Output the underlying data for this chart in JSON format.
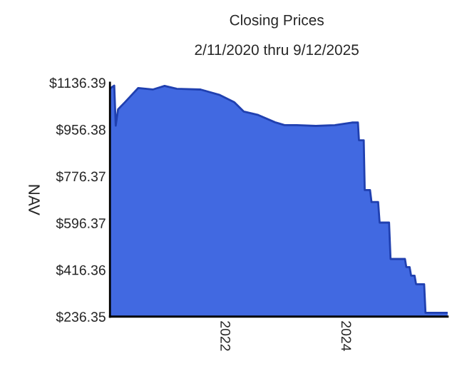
{
  "chart_data": {
    "type": "area",
    "title": "Closing Prices",
    "subtitle": "2/11/2020 thru 9/12/2025",
    "ylabel": "NAV",
    "x": [
      "2020-02-11",
      "2020-03-08",
      "2020-03-17",
      "2020-03-31",
      "2020-05-11",
      "2020-07-31",
      "2020-10-26",
      "2021-01-06",
      "2021-03-20",
      "2021-08-12",
      "2021-12-06",
      "2022-03-03",
      "2022-04-30",
      "2022-07-26",
      "2022-11-04",
      "2023-01-01",
      "2023-03-15",
      "2023-07-09",
      "2023-11-01",
      "2024-02-11",
      "2024-03-19",
      "2024-03-25",
      "2024-04-23",
      "2024-04-29",
      "2024-05-31",
      "2024-06-09",
      "2024-07-19",
      "2024-07-28",
      "2024-09-23",
      "2024-10-02",
      "2024-12-28",
      "2025-01-05",
      "2025-01-25",
      "2025-02-03",
      "2025-02-24",
      "2025-03-05",
      "2025-04-23",
      "2025-05-01",
      "2025-09-12"
    ],
    "series": [
      {
        "color": "#4169e1",
        "values": [
          1114,
          1125,
          971,
          1034,
          1061,
          1116,
          1110,
          1124,
          1113,
          1110,
          1089,
          1061,
          1025,
          1012,
          984,
          973,
          973,
          970,
          973,
          983,
          983,
          915,
          915,
          723,
          723,
          677,
          677,
          598,
          598,
          458,
          458,
          427,
          427,
          394,
          394,
          361,
          361,
          251,
          251
        ]
      }
    ],
    "xlim": [
      "2020-02-11",
      "2025-09-12"
    ],
    "xticks": [
      "2022",
      "2024"
    ],
    "ylim": [
      236.35,
      1136.39
    ],
    "yticks": [
      {
        "value": 236.35,
        "label": "$236.35"
      },
      {
        "value": 416.36,
        "label": "$416.36"
      },
      {
        "value": 596.37,
        "label": "$596.37"
      },
      {
        "value": 776.37,
        "label": "$776.37"
      },
      {
        "value": 956.38,
        "label": "$956.38"
      },
      {
        "value": 1136.39,
        "label": "$1136.39"
      }
    ],
    "grid": false,
    "legend": false
  }
}
